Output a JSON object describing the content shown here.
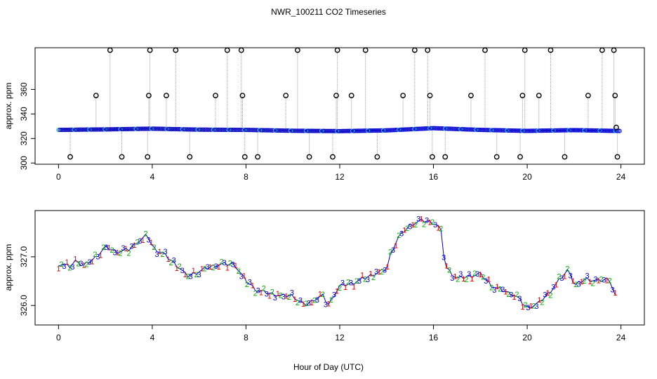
{
  "chart_data": [
    {
      "type": "scatter",
      "title": "NWR_100211  CO2 Timeseries",
      "xlabel": "",
      "ylabel": "approx. ppm",
      "xlim": [
        -1,
        25
      ],
      "ylim": [
        299,
        394
      ],
      "x_ticks": [
        "0",
        "4",
        "8",
        "12",
        "16",
        "20",
        "24"
      ],
      "y_ticks": [
        "300",
        "320",
        "340",
        "360"
      ],
      "colors": {
        "points": "#0000cc",
        "alt_points": "#00bcd4",
        "outliers": "#000000",
        "stems": "#999999"
      },
      "baseline_series": {
        "x": [
          0,
          2,
          4,
          6,
          8,
          10,
          12,
          14,
          16,
          18,
          20,
          22,
          24
        ],
        "y": [
          327,
          327.4,
          328,
          327.2,
          327,
          326.3,
          326,
          326.6,
          328.4,
          327,
          326.2,
          326.8,
          326.1
        ]
      },
      "outliers": {
        "x": [
          0.5,
          1.6,
          2.2,
          2.7,
          3.8,
          3.85,
          3.9,
          4.6,
          5.0,
          5.6,
          6.7,
          7.2,
          7.8,
          7.85,
          7.95,
          8.5,
          9.7,
          10.2,
          10.7,
          11.7,
          11.85,
          11.9,
          12.5,
          13.1,
          13.6,
          14.7,
          15.2,
          15.75,
          15.85,
          15.95,
          16.5,
          17.6,
          18.2,
          18.7,
          19.7,
          19.8,
          19.9,
          20.5,
          21.0,
          21.6,
          22.6,
          23.2,
          23.7,
          23.75,
          23.8,
          23.85
        ],
        "y": [
          305,
          355,
          392,
          305,
          305,
          355,
          392,
          355,
          392,
          305,
          355,
          392,
          392,
          355,
          305,
          305,
          355,
          392,
          305,
          305,
          355,
          392,
          355,
          392,
          305,
          355,
          392,
          392,
          355,
          305,
          305,
          355,
          392,
          305,
          305,
          355,
          392,
          355,
          392,
          305,
          355,
          392,
          392,
          355,
          329,
          305
        ]
      }
    },
    {
      "type": "scatter",
      "title": "",
      "xlabel": "Hour of Day (UTC)",
      "ylabel": "approx. ppm",
      "xlim": [
        -1,
        25
      ],
      "ylim": [
        325.6,
        327.95
      ],
      "x_ticks": [
        "0",
        "4",
        "8",
        "12",
        "16",
        "20",
        "24"
      ],
      "y_ticks": [
        "326.0",
        "327.0"
      ],
      "markers": [
        "1",
        "2",
        "3"
      ],
      "colors": {
        "1": "#dd0000",
        "2": "#00aa00",
        "3": "#0000cc",
        "line": "#0000cc"
      },
      "series": {
        "x": [
          0,
          0.5,
          0.8,
          1.0,
          1.5,
          2.0,
          2.5,
          3.0,
          3.5,
          3.8,
          4.0,
          4.5,
          5.0,
          5.5,
          6.0,
          6.5,
          7.0,
          7.5,
          8.0,
          8.5,
          9.0,
          9.5,
          10.0,
          10.5,
          11.0,
          11.3,
          11.5,
          11.8,
          12.0,
          12.5,
          13.0,
          13.5,
          14.0,
          14.2,
          14.5,
          15.0,
          15.5,
          16.0,
          16.3,
          16.5,
          17.0,
          17.5,
          18.0,
          18.5,
          19.0,
          19.5,
          20.0,
          20.5,
          21.0,
          21.5,
          21.8,
          22.0,
          22.5,
          23.0,
          23.5,
          23.8
        ],
        "y": [
          326.85,
          326.8,
          326.95,
          326.8,
          326.95,
          327.2,
          327.1,
          327.15,
          327.35,
          327.45,
          327.2,
          327.05,
          326.85,
          326.6,
          326.7,
          326.8,
          326.85,
          326.85,
          326.5,
          326.3,
          326.25,
          326.2,
          326.2,
          326.0,
          326.15,
          326.2,
          326.0,
          326.25,
          326.4,
          326.45,
          326.55,
          326.65,
          326.75,
          327.1,
          327.4,
          327.65,
          327.75,
          327.7,
          327.6,
          326.8,
          326.55,
          326.6,
          326.65,
          326.4,
          326.3,
          326.2,
          325.95,
          326.05,
          326.3,
          326.6,
          326.75,
          326.4,
          326.55,
          326.5,
          326.55,
          326.15
        ]
      }
    }
  ]
}
